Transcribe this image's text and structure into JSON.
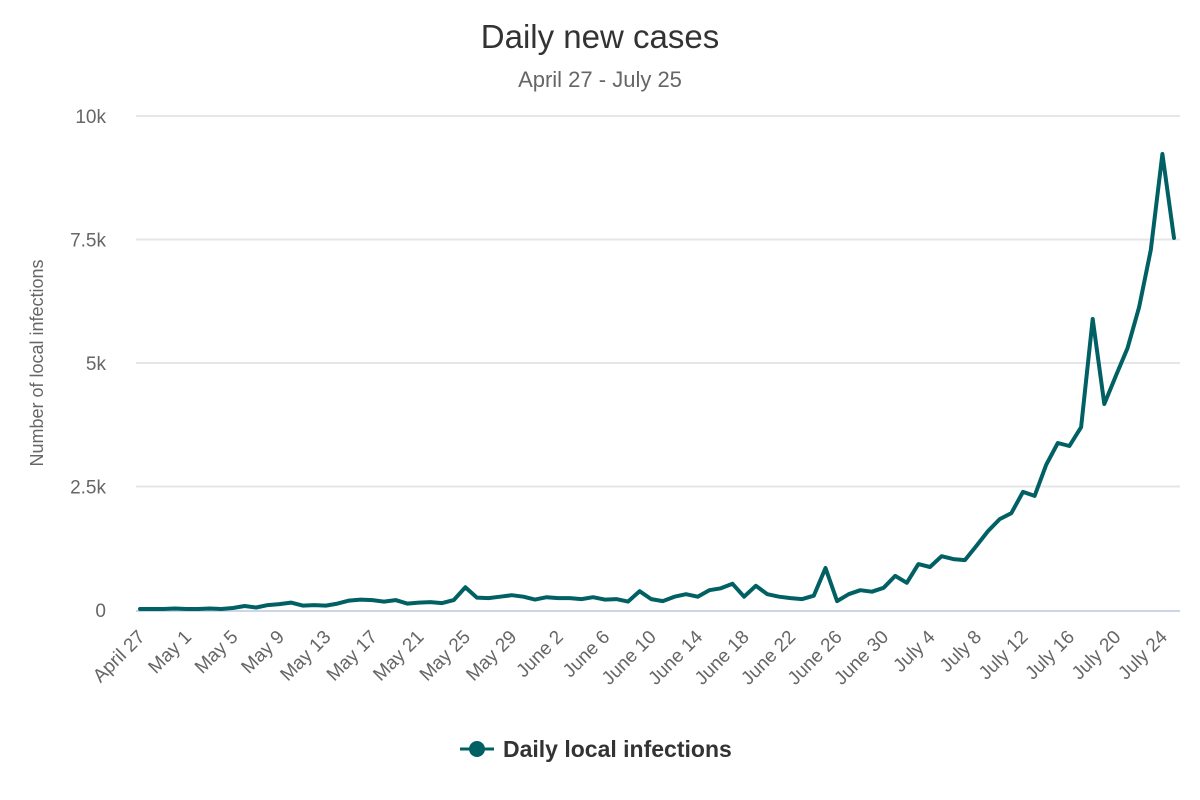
{
  "chart_data": {
    "type": "line",
    "title": "Daily new cases",
    "subtitle": "April 27 - July 25",
    "xlabel": "",
    "ylabel": "Number of local infections",
    "ylim": [
      0,
      10000
    ],
    "yticks": [
      0,
      2500,
      5000,
      7500,
      10000
    ],
    "ytick_labels": [
      "0",
      "2.5k",
      "5k",
      "7.5k",
      "10k"
    ],
    "grid": true,
    "legend_position": "bottom",
    "color": "#006064",
    "x_start": "April 27",
    "x_end": "July 25",
    "x_tick_every_days": 4,
    "xtick_labels": [
      "April 27",
      "May 1",
      "May 5",
      "May 9",
      "May 13",
      "May 17",
      "May 21",
      "May 25",
      "May 29",
      "June 2",
      "June 6",
      "June 10",
      "June 14",
      "June 18",
      "June 22",
      "June 26",
      "June 30",
      "July 4",
      "July 8",
      "July 12",
      "July 16",
      "July 20",
      "July 24"
    ],
    "series": [
      {
        "name": "Daily local infections",
        "values": [
          20,
          20,
          20,
          30,
          20,
          20,
          30,
          20,
          40,
          80,
          50,
          100,
          120,
          150,
          90,
          100,
          90,
          130,
          190,
          210,
          200,
          170,
          200,
          130,
          150,
          160,
          140,
          200,
          460,
          250,
          240,
          270,
          300,
          270,
          210,
          260,
          240,
          240,
          220,
          260,
          210,
          220,
          170,
          380,
          220,
          180,
          270,
          320,
          270,
          400,
          440,
          530,
          270,
          490,
          320,
          270,
          240,
          220,
          290,
          850,
          180,
          320,
          400,
          370,
          450,
          690,
          550,
          930,
          870,
          1090,
          1030,
          1010,
          1300,
          1600,
          1840,
          1960,
          2390,
          2310,
          2940,
          3380,
          3320,
          3700,
          5890,
          4170,
          4740,
          5300,
          6130,
          7290,
          9230,
          7530
        ]
      }
    ]
  }
}
